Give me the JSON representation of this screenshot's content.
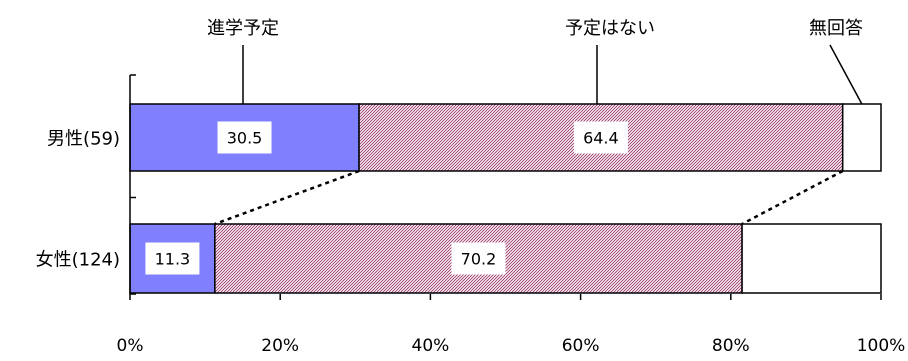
{
  "chart_data": {
    "type": "bar",
    "orientation": "horizontal",
    "stacked": true,
    "percent_stacked": true,
    "categories": [
      "男性(59)",
      "女性(124)"
    ],
    "series": [
      {
        "name": "進学予定",
        "values": [
          30.5,
          11.3
        ],
        "color": "#8080ff",
        "pattern": "solid"
      },
      {
        "name": "予定はない",
        "values": [
          64.4,
          70.2
        ],
        "color": "#993366",
        "pattern": "diagonal-hatch"
      },
      {
        "name": "無回答",
        "values": [
          5.1,
          18.5
        ],
        "color": "#ffffff",
        "pattern": "solid"
      }
    ],
    "data_labels": [
      [
        "30.5",
        "64.4",
        ""
      ],
      [
        "11.3",
        "70.2",
        ""
      ]
    ],
    "x_tick_labels": [
      "0%",
      "20%",
      "40%",
      "60%",
      "80%",
      "100%"
    ],
    "xlim": [
      0,
      100
    ],
    "grid": false,
    "legend": "callouts-above",
    "series_connector_lines": true
  }
}
